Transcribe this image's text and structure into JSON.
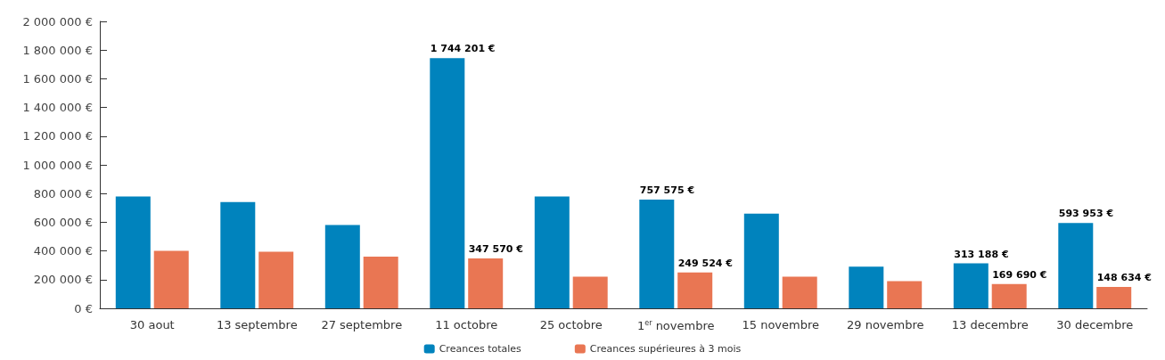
{
  "chart_data": {
    "type": "bar",
    "categories": [
      "30 aout",
      "13 septembre",
      "27 septembre",
      "11 octobre",
      "25 octobre",
      "1$^{er}$ novembre",
      "15 novembre",
      "29 novembre",
      "13 decembre",
      "30 decembre"
    ],
    "series": [
      {
        "name": "Creances totales",
        "color": "#0083bd",
        "values": [
          780000,
          740000,
          580000,
          1744201,
          780000,
          757575,
          660000,
          290000,
          313188,
          593953
        ],
        "value_labels": [
          null,
          null,
          null,
          "1 744 201 €",
          null,
          "757 575 €",
          null,
          null,
          "313 188 €",
          "593 953 €"
        ]
      },
      {
        "name": "Creances supérieures à 3 mois",
        "color": "#e97653",
        "values": [
          400000,
          395000,
          360000,
          347570,
          220000,
          249524,
          220000,
          190000,
          169690,
          148634
        ],
        "value_labels": [
          null,
          null,
          null,
          "347 570 €",
          null,
          "249 524 €",
          null,
          null,
          "169 690 €",
          "148 634 €"
        ]
      }
    ],
    "ylim": [
      0,
      2000000
    ],
    "yticks": [
      {
        "value": 0,
        "label": "0 €"
      },
      {
        "value": 200000,
        "label": "200 000 €"
      },
      {
        "value": 400000,
        "label": "400 000 €"
      },
      {
        "value": 600000,
        "label": "600 000 €"
      },
      {
        "value": 800000,
        "label": "800 000 €"
      },
      {
        "value": 1000000,
        "label": "1 000 000 €"
      },
      {
        "value": 1200000,
        "label": "1 200 000 €"
      },
      {
        "value": 1400000,
        "label": "1 400 000 €"
      },
      {
        "value": 1600000,
        "label": "1 600 000 €"
      },
      {
        "value": 1800000,
        "label": "1 800 000 €"
      },
      {
        "value": 2000000,
        "label": "2 000 000 €"
      }
    ],
    "grid": false,
    "legend": "bottom"
  }
}
